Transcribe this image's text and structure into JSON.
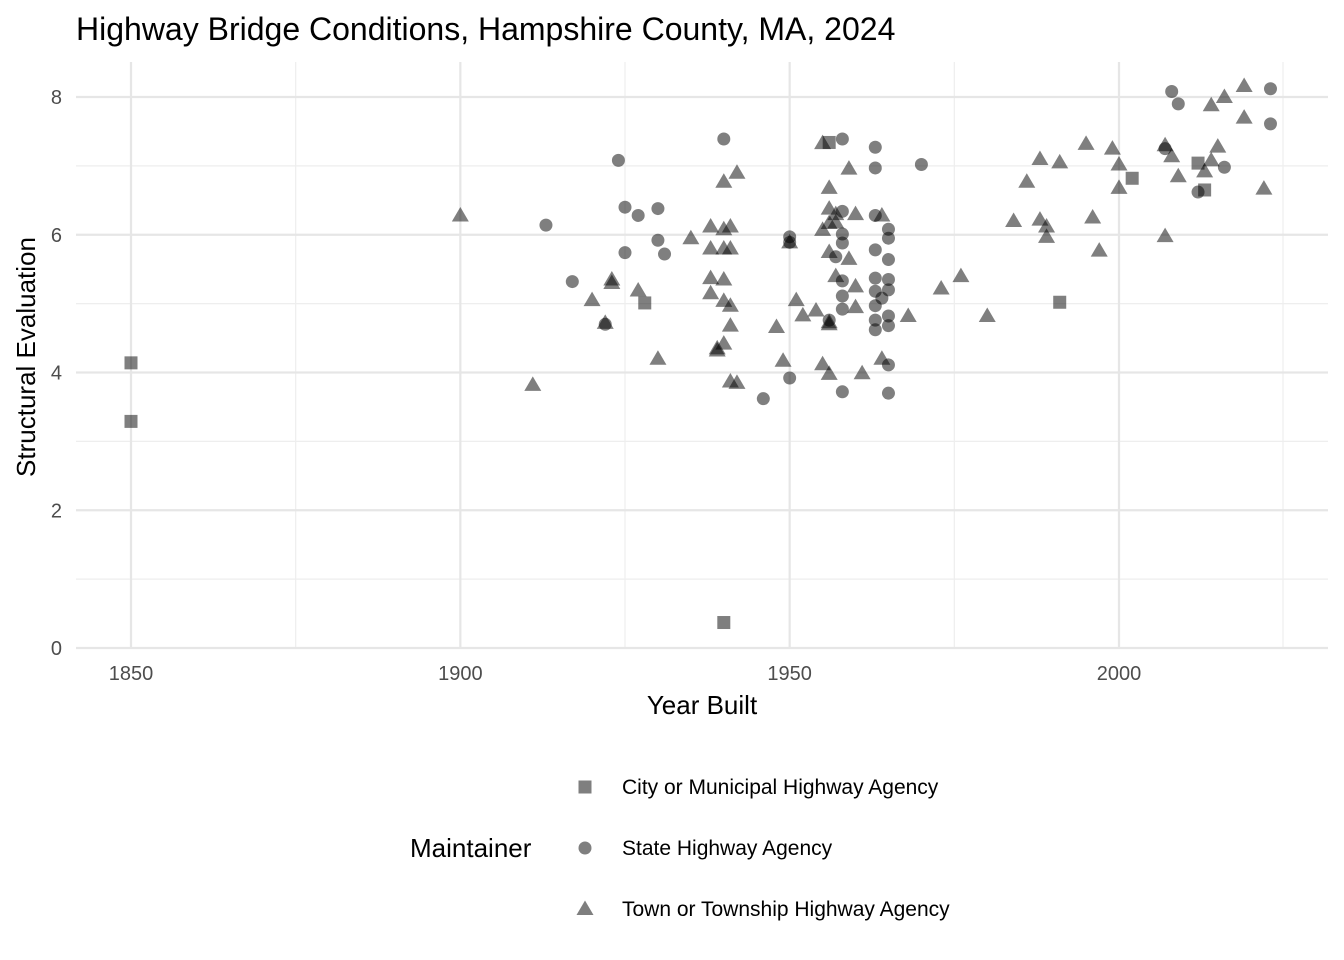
{
  "chart_data": {
    "type": "scatter",
    "title": "Highway Bridge Conditions, Hampshire County, MA, 2024",
    "xlabel": "Year Built",
    "ylabel": "Structural Evaluation",
    "xlim": [
      1842,
      2024
    ],
    "ylim": [
      0,
      8.4
    ],
    "x_ticks": [
      "1850",
      "1900",
      "1950",
      "2000"
    ],
    "y_ticks": [
      "0",
      "2",
      "4",
      "6",
      "8"
    ],
    "grid": true,
    "legend": {
      "title": "Maintainer",
      "position": "bottom"
    },
    "point_color": "#000000",
    "point_opacity": 0.5,
    "series": [
      {
        "name": "City or Municipal Highway Agency",
        "shape": "square",
        "points": [
          [
            1850,
            4.14
          ],
          [
            1850,
            3.29
          ],
          [
            1928,
            5.01
          ],
          [
            1940,
            0.37
          ],
          [
            1956,
            7.34
          ],
          [
            1991,
            5.02
          ],
          [
            2002,
            6.82
          ],
          [
            2012,
            7.04
          ],
          [
            2013,
            6.65
          ]
        ]
      },
      {
        "name": "State Highway Agency",
        "shape": "circle",
        "points": [
          [
            1913,
            6.14
          ],
          [
            1917,
            5.32
          ],
          [
            1922,
            4.7
          ],
          [
            1924,
            7.08
          ],
          [
            1925,
            6.4
          ],
          [
            1925,
            5.74
          ],
          [
            1927,
            6.28
          ],
          [
            1930,
            6.38
          ],
          [
            1930,
            5.92
          ],
          [
            1931,
            5.72
          ],
          [
            1940,
            7.39
          ],
          [
            1946,
            3.62
          ],
          [
            1950,
            5.97
          ],
          [
            1950,
            5.89
          ],
          [
            1950,
            3.92
          ],
          [
            1956,
            4.76
          ],
          [
            1957,
            5.68
          ],
          [
            1958,
            7.39
          ],
          [
            1958,
            6.34
          ],
          [
            1958,
            6.01
          ],
          [
            1958,
            5.88
          ],
          [
            1958,
            5.33
          ],
          [
            1958,
            5.11
          ],
          [
            1958,
            4.92
          ],
          [
            1958,
            3.72
          ],
          [
            1963,
            7.27
          ],
          [
            1963,
            6.97
          ],
          [
            1963,
            6.28
          ],
          [
            1963,
            5.78
          ],
          [
            1963,
            5.37
          ],
          [
            1963,
            5.18
          ],
          [
            1963,
            4.97
          ],
          [
            1963,
            4.76
          ],
          [
            1963,
            4.62
          ],
          [
            1964,
            5.08
          ],
          [
            1965,
            6.08
          ],
          [
            1965,
            5.95
          ],
          [
            1965,
            5.64
          ],
          [
            1965,
            5.35
          ],
          [
            1965,
            5.2
          ],
          [
            1965,
            4.82
          ],
          [
            1965,
            4.68
          ],
          [
            1965,
            4.11
          ],
          [
            1965,
            3.7
          ],
          [
            1970,
            7.02
          ],
          [
            2007,
            7.25
          ],
          [
            2008,
            8.08
          ],
          [
            2009,
            7.9
          ],
          [
            2012,
            6.62
          ],
          [
            2016,
            6.98
          ],
          [
            2023,
            8.12
          ],
          [
            2023,
            7.61
          ]
        ]
      },
      {
        "name": "Town or Township Highway Agency",
        "shape": "triangle",
        "points": [
          [
            1900,
            6.28
          ],
          [
            1911,
            3.82
          ],
          [
            1920,
            5.05
          ],
          [
            1922,
            4.72
          ],
          [
            1923,
            5.35
          ],
          [
            1923,
            5.3
          ],
          [
            1927,
            5.19
          ],
          [
            1930,
            4.2
          ],
          [
            1935,
            5.95
          ],
          [
            1938,
            6.12
          ],
          [
            1938,
            5.8
          ],
          [
            1938,
            5.37
          ],
          [
            1938,
            5.15
          ],
          [
            1939,
            4.35
          ],
          [
            1939,
            4.32
          ],
          [
            1940,
            6.77
          ],
          [
            1940,
            6.08
          ],
          [
            1940,
            5.8
          ],
          [
            1940,
            5.35
          ],
          [
            1940,
            5.04
          ],
          [
            1940,
            4.42
          ],
          [
            1941,
            6.12
          ],
          [
            1941,
            5.8
          ],
          [
            1941,
            4.97
          ],
          [
            1941,
            4.68
          ],
          [
            1941,
            3.87
          ],
          [
            1942,
            6.9
          ],
          [
            1942,
            3.85
          ],
          [
            1948,
            4.66
          ],
          [
            1949,
            4.17
          ],
          [
            1950,
            5.89
          ],
          [
            1951,
            5.05
          ],
          [
            1952,
            4.83
          ],
          [
            1954,
            4.9
          ],
          [
            1955,
            4.12
          ],
          [
            1955,
            7.33
          ],
          [
            1955,
            6.07
          ],
          [
            1956,
            6.68
          ],
          [
            1956,
            6.38
          ],
          [
            1956,
            6.17
          ],
          [
            1956,
            5.75
          ],
          [
            1956,
            4.73
          ],
          [
            1956,
            4.7
          ],
          [
            1957,
            6.3
          ],
          [
            1957,
            5.4
          ],
          [
            1956,
            3.98
          ],
          [
            1957,
            6.18
          ],
          [
            1959,
            6.96
          ],
          [
            1959,
            5.65
          ],
          [
            1960,
            6.3
          ],
          [
            1960,
            5.25
          ],
          [
            1960,
            4.95
          ],
          [
            1961,
            3.99
          ],
          [
            1964,
            6.28
          ],
          [
            1964,
            4.2
          ],
          [
            1968,
            4.82
          ],
          [
            1973,
            5.22
          ],
          [
            1976,
            5.4
          ],
          [
            1980,
            4.82
          ],
          [
            1984,
            6.2
          ],
          [
            1986,
            6.77
          ],
          [
            1988,
            7.1
          ],
          [
            1988,
            6.22
          ],
          [
            1989,
            6.12
          ],
          [
            1989,
            5.97
          ],
          [
            1991,
            7.05
          ],
          [
            1995,
            7.32
          ],
          [
            1996,
            6.25
          ],
          [
            1997,
            5.77
          ],
          [
            1999,
            7.25
          ],
          [
            2000,
            7.02
          ],
          [
            2000,
            6.68
          ],
          [
            2007,
            7.3
          ],
          [
            2007,
            5.98
          ],
          [
            2008,
            7.14
          ],
          [
            2009,
            6.85
          ],
          [
            2013,
            6.92
          ],
          [
            2014,
            7.88
          ],
          [
            2014,
            7.08
          ],
          [
            2015,
            7.28
          ],
          [
            2016,
            8.0
          ],
          [
            2019,
            8.16
          ],
          [
            2019,
            7.7
          ],
          [
            2022,
            6.67
          ]
        ]
      }
    ]
  }
}
